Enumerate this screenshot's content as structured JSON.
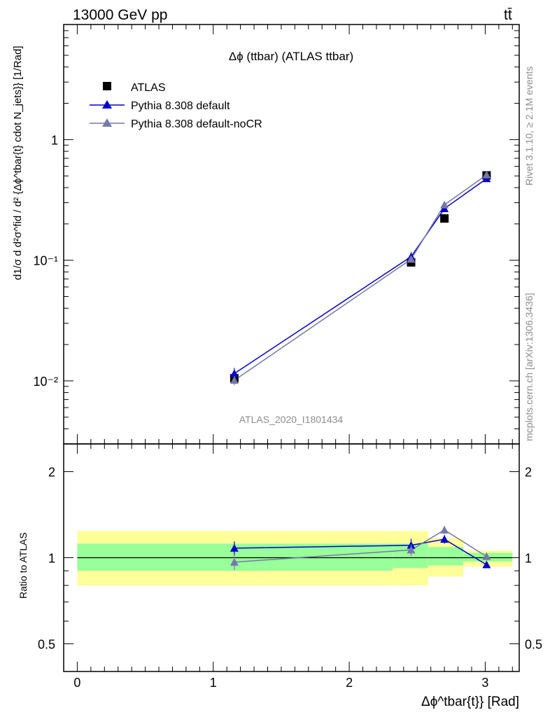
{
  "header": {
    "process": "13000 GeV pp",
    "channel": "tt̄"
  },
  "side_labels": {
    "rivet": "Rivet 3.1.10, ≥ 2.1M events",
    "mcplots": "mcplots.cern.ch [arXiv:1306.3436]"
  },
  "chart_data": [
    {
      "type": "scatter",
      "title": "Δϕ (ttbar) (ATLAS ttbar)",
      "watermark": "ATLAS_2020_I1801434",
      "ylabel": "d1/σ d d²σ^fid / d² {Δϕ^tbar{t} cdot N_jets}} [1/Rad]",
      "y_scale": "log",
      "xlim": [
        -0.1,
        3.25
      ],
      "ylim": [
        0.003,
        9
      ],
      "y_tick_labels": [
        "10⁻²",
        "10⁻¹",
        "1"
      ],
      "legend_position": "top-left",
      "x": [
        1.155,
        2.455,
        2.7,
        3.01
      ],
      "series": [
        {
          "name": "ATLAS",
          "marker": "square",
          "color": "#000000",
          "values": [
            0.0105,
            0.096,
            0.222,
            0.505
          ],
          "errors": [
            0.0008,
            0.005,
            0.01,
            0.02
          ]
        },
        {
          "name": "Pythia 8.308 default",
          "marker": "triangle",
          "color": "#0000cc",
          "values": [
            0.0115,
            0.107,
            0.268,
            0.475
          ],
          "errors": [
            0.0013,
            0.01,
            0.012,
            0.015
          ]
        },
        {
          "name": "Pythia 8.308 default-noCR",
          "marker": "triangle",
          "color": "#7777aa",
          "values": [
            0.0101,
            0.102,
            0.288,
            0.51
          ],
          "errors": [
            0.0009,
            0.007,
            0.01,
            0.015
          ]
        }
      ]
    },
    {
      "type": "scatter",
      "ylabel": "Ratio to ATLAS",
      "xlabel": "Δϕ^tbar{t}} [Rad]",
      "y_scale": "log",
      "xlim": [
        -0.1,
        3.25
      ],
      "ylim": [
        0.4,
        2.5
      ],
      "x_tick_labels": [
        "0",
        "1",
        "2",
        "3"
      ],
      "y_tick_labels": [
        "0.5",
        "1",
        "2"
      ],
      "bands": [
        {
          "x0": 0.0,
          "x1": 2.32,
          "yellow": [
            0.8,
            1.24
          ],
          "green": [
            0.9,
            1.12
          ]
        },
        {
          "x0": 2.32,
          "x1": 2.58,
          "yellow": [
            0.8,
            1.24
          ],
          "green": [
            0.92,
            1.12
          ]
        },
        {
          "x0": 2.58,
          "x1": 2.84,
          "yellow": [
            0.86,
            1.17
          ],
          "green": [
            0.94,
            1.09
          ]
        },
        {
          "x0": 2.84,
          "x1": 3.2,
          "yellow": [
            0.93,
            1.06
          ],
          "green": [
            0.97,
            1.04
          ]
        }
      ],
      "x": [
        1.155,
        2.455,
        2.7,
        3.01
      ],
      "series": [
        {
          "name": "Pythia 8.308 default",
          "color": "#0000cc",
          "values": [
            1.08,
            1.105,
            1.16,
            0.945
          ],
          "errors": [
            0.06,
            0.06,
            0.04,
            0.015
          ]
        },
        {
          "name": "Pythia 8.308 default-noCR",
          "color": "#7777aa",
          "values": [
            0.965,
            1.065,
            1.25,
            1.01
          ],
          "errors": [
            0.06,
            0.05,
            0.04,
            0.015
          ]
        }
      ]
    }
  ]
}
